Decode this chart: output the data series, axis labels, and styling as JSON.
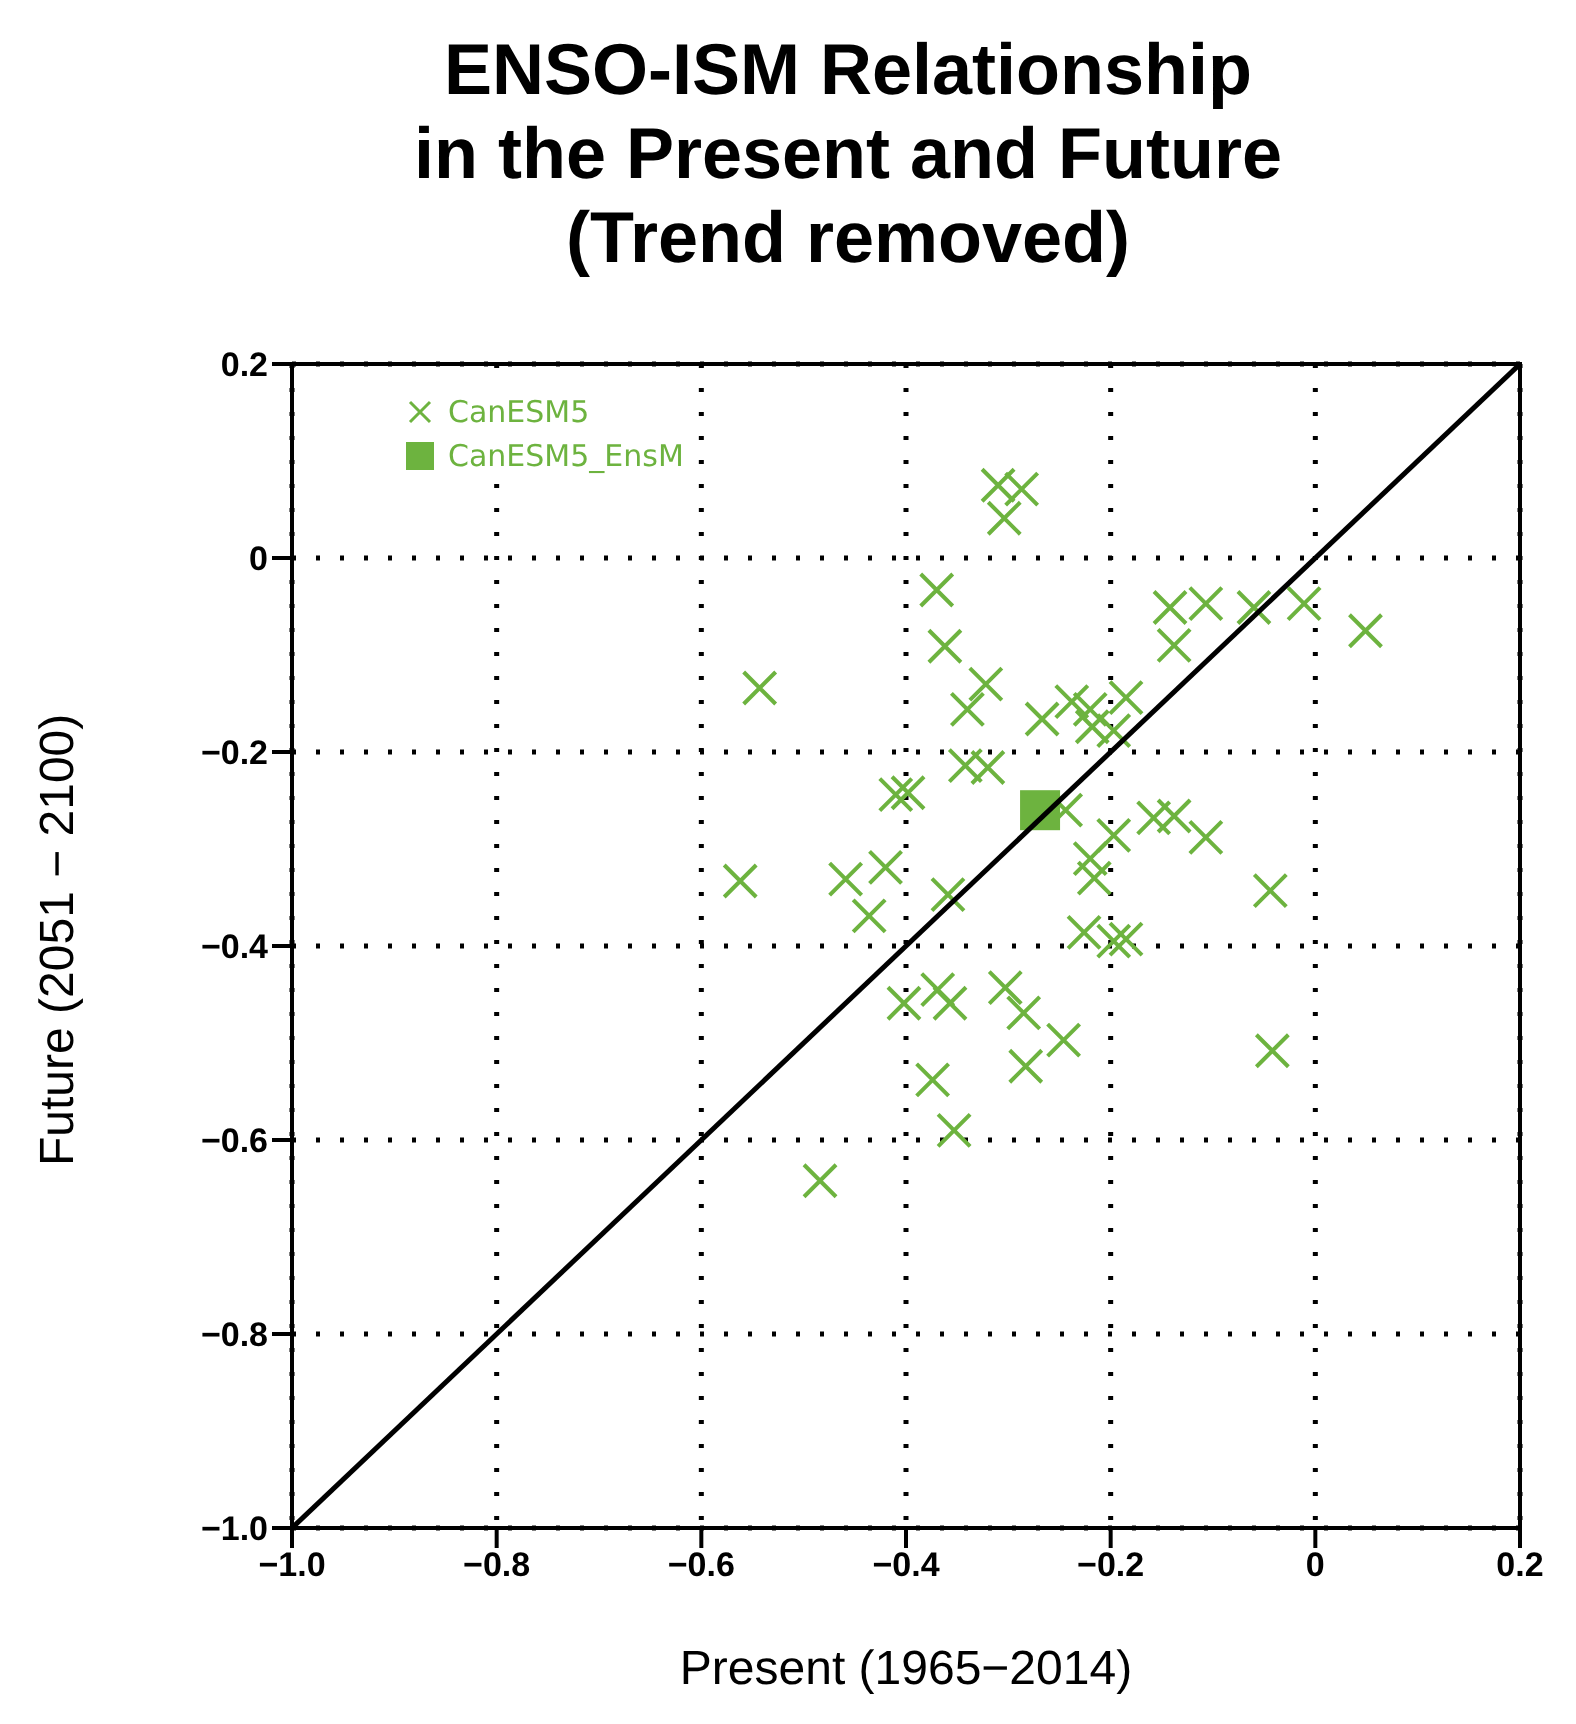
{
  "chart_data": {
    "type": "scatter",
    "title": "ENSO-ISM Relationship\nin the Present and Future\n(Trend removed)",
    "xlabel": "Present (1965−2014)",
    "ylabel": "Future (2051 − 2100)",
    "xlim": [
      -1.0,
      0.2
    ],
    "ylim": [
      -1.0,
      0.2
    ],
    "xticks": [
      {
        "value": -1.0,
        "label": "−1.0"
      },
      {
        "value": -0.8,
        "label": "−0.8"
      },
      {
        "value": -0.6,
        "label": "−0.6"
      },
      {
        "value": -0.4,
        "label": "−0.4"
      },
      {
        "value": -0.2,
        "label": "−0.2"
      },
      0,
      0.2
    ],
    "yticks": [
      {
        "value": -1.0,
        "label": "−1.0"
      },
      {
        "value": -0.8,
        "label": "−0.8"
      },
      {
        "value": -0.6,
        "label": "−0.6"
      },
      {
        "value": -0.4,
        "label": "−0.4"
      },
      {
        "value": -0.2,
        "label": "−0.2"
      },
      0,
      0.2
    ],
    "grid": true,
    "legend": "top left",
    "series": [
      {
        "name": "CanESM5",
        "color": "#6db33f",
        "marker": "cross",
        "x": [
          -0.31,
          -0.287,
          -0.304,
          -0.37,
          -0.362,
          -0.543,
          -0.322,
          -0.34,
          -0.267,
          -0.238,
          -0.22,
          -0.218,
          -0.197,
          -0.185,
          -0.342,
          -0.32,
          -0.41,
          -0.398,
          -0.244,
          -0.142,
          -0.107,
          -0.06,
          -0.011,
          0.049,
          -0.138,
          -0.158,
          -0.138,
          -0.107,
          -0.044,
          -0.042,
          -0.185,
          -0.226,
          -0.197,
          -0.562,
          -0.459,
          -0.42,
          -0.436,
          -0.359,
          -0.22,
          -0.216,
          -0.197,
          -0.402,
          -0.369,
          -0.357,
          -0.303,
          -0.285,
          -0.246,
          -0.283,
          -0.374,
          -0.353,
          -0.484
        ],
        "values": [
          0.075,
          0.071,
          0.041,
          -0.033,
          -0.091,
          -0.134,
          -0.13,
          -0.156,
          -0.166,
          -0.148,
          -0.156,
          -0.174,
          -0.178,
          -0.144,
          -0.214,
          -0.216,
          -0.244,
          -0.242,
          -0.26,
          -0.051,
          -0.047,
          -0.051,
          -0.047,
          -0.075,
          -0.09,
          -0.268,
          -0.266,
          -0.288,
          -0.343,
          -0.508,
          -0.393,
          -0.386,
          -0.395,
          -0.333,
          -0.331,
          -0.319,
          -0.369,
          -0.347,
          -0.31,
          -0.33,
          -0.286,
          -0.459,
          -0.445,
          -0.459,
          -0.443,
          -0.469,
          -0.497,
          -0.524,
          -0.538,
          -0.59,
          -0.642
        ]
      },
      {
        "name": "CanESM5_EnsM",
        "color": "#6db33f",
        "marker": "square",
        "x": [
          -0.269
        ],
        "values": [
          -0.26
        ]
      },
      {
        "type": "line",
        "color": "#000000",
        "marker": "none",
        "line_style": "solid",
        "x": [
          -1.0,
          0.2
        ],
        "values": [
          -1.0,
          0.2
        ]
      }
    ]
  }
}
